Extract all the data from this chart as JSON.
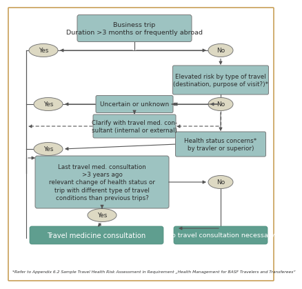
{
  "bg_color": "#ffffff",
  "border_color": "#c8a057",
  "box_light_teal": "#9dc3c1",
  "box_dark_teal": "#5f9e8f",
  "box_cream": "#ddd9c3",
  "text_color_dark": "#2b2b2b",
  "text_color_white": "#ffffff",
  "line_color": "#555555",
  "title_box": "Business trip\nDuration >3 months or frequently abroad",
  "box2": "Elevated risk by type of travel\n(destination, purpose of visit?)*",
  "box3": "Uncertain or unknown",
  "box4": "Clarify with travel med. con-\nsultant (internal or external)",
  "box5": "Health status concerns*\nby travler or superior)",
  "box6": "Last travel med. consultation\n>3 years ago\nrelevant change of health status or\ntrip with different type of travel\nconditions than previous trips?",
  "box7": "Travel medicine consultation",
  "box8": "No travel consultation necessary",
  "yes_label": "Yes",
  "no_label": "No",
  "footnote": "*Refer to Appendix 6.2 Sample Travel Health Risk Assessment in Requirement „Health Management for BASF Travelers and Transferees“"
}
